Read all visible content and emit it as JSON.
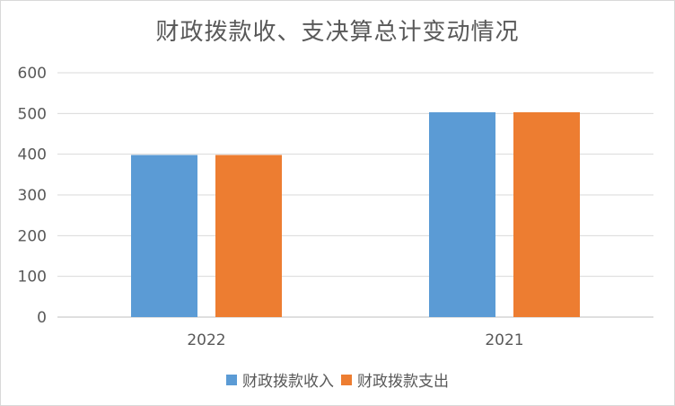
{
  "chart_data": {
    "type": "bar",
    "title": "财政拨款收、支决算总计变动情况",
    "categories": [
      "2022",
      "2021"
    ],
    "series": [
      {
        "name": "财政拨款收入",
        "values": [
          398,
          503
        ],
        "color": "#5b9bd5"
      },
      {
        "name": "财政拨款支出",
        "values": [
          398,
          503
        ],
        "color": "#ed7d31"
      }
    ],
    "ylim": [
      0,
      600
    ],
    "yticks": [
      0,
      100,
      200,
      300,
      400,
      500,
      600
    ],
    "grid": true,
    "legend_position": "bottom"
  }
}
